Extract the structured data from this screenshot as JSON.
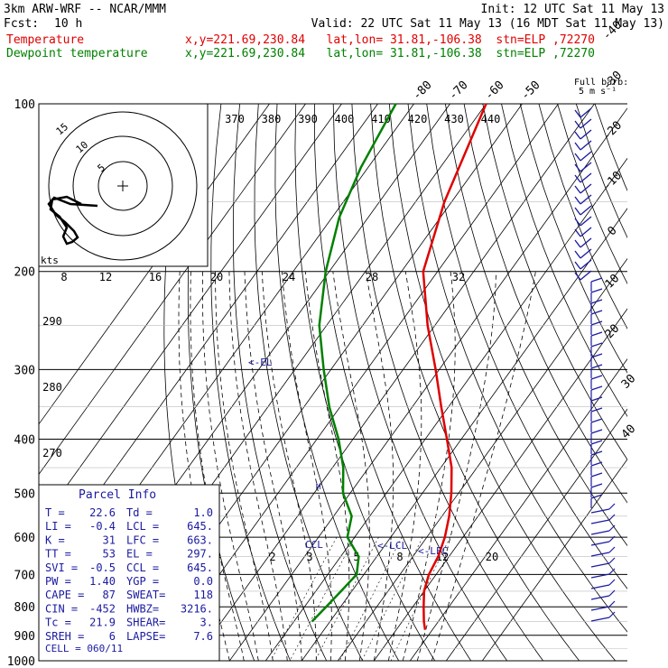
{
  "header": {
    "model": "3km ARW-WRF -- NCAR/MMM",
    "init": "Init: 12 UTC Sat 11 May 13",
    "fcst_label": "Fcst:",
    "fcst_value": "10 h",
    "valid": "Valid: 22 UTC Sat 11 May 13 (16 MDT Sat 11 May 13)",
    "temp_label": "Temperature",
    "dew_label": "Dewpoint temperature",
    "info_temp": "x,y=221.69,230.84   lat,lon= 31.81,-106.38  stn=ELP ,72270",
    "info_dew": "x,y=221.69,230.84   lat,lon= 31.81,-106.38  stn=ELP ,72270"
  },
  "colors": {
    "temperature": "#e00000",
    "dewpoint": "#008000",
    "wind": "#1a1aa0"
  },
  "chart_data": {
    "type": "line",
    "pressure_ticks": [
      "100",
      "200",
      "300",
      "400",
      "500",
      "600",
      "700",
      "800",
      "900",
      "1000"
    ],
    "pressure_values": [
      100,
      200,
      300,
      400,
      500,
      600,
      700,
      800,
      900,
      1000
    ],
    "isotherm_labels": [
      "-80",
      "-70",
      "-60",
      "-50",
      "-40",
      "-30",
      "-20",
      "-10",
      "0",
      "10",
      "20",
      "30",
      "40"
    ],
    "theta_labels": [
      "370",
      "380",
      "390",
      "400",
      "410",
      "420",
      "430",
      "440"
    ],
    "theta_low_labels": [
      "290",
      "280",
      "270"
    ],
    "mixing_ratio_labels": [
      "2",
      "3",
      "5",
      "8",
      "12",
      "20"
    ],
    "hodo_speed_labels": [
      "8",
      "12",
      "16",
      "20",
      "24",
      "28",
      "32"
    ],
    "hodo_ring_labels": [
      "5",
      "10",
      "15"
    ],
    "hodo_units": "kts",
    "wind_scale_label": "Full barb:",
    "wind_scale_value": "5 m s⁻¹",
    "series": [
      {
        "name": "Temperature",
        "points": [
          [
            100,
            -60
          ],
          [
            150,
            -52
          ],
          [
            200,
            -44
          ],
          [
            250,
            -32
          ],
          [
            300,
            -21
          ],
          [
            350,
            -12
          ],
          [
            400,
            -4
          ],
          [
            450,
            3
          ],
          [
            500,
            8
          ],
          [
            550,
            12
          ],
          [
            600,
            15
          ],
          [
            650,
            17
          ],
          [
            700,
            18
          ],
          [
            750,
            20
          ],
          [
            800,
            23
          ],
          [
            850,
            26
          ],
          [
            880,
            28
          ]
        ]
      },
      {
        "name": "Dewpoint temperature",
        "points": [
          [
            100,
            -85
          ],
          [
            130,
            -82
          ],
          [
            160,
            -78
          ],
          [
            200,
            -71
          ],
          [
            250,
            -62
          ],
          [
            300,
            -52
          ],
          [
            350,
            -43
          ],
          [
            400,
            -34
          ],
          [
            450,
            -27
          ],
          [
            500,
            -22
          ],
          [
            550,
            -15
          ],
          [
            600,
            -12
          ],
          [
            650,
            -5
          ],
          [
            700,
            -2
          ],
          [
            750,
            -3
          ],
          [
            800,
            -4
          ],
          [
            850,
            -5
          ]
        ]
      }
    ],
    "annotations": {
      "el": "<-EL",
      "lcl": "<-LCL",
      "lfc": "<-LFC",
      "ccl": "CCL"
    }
  },
  "parcel_info": {
    "title": "Parcel Info",
    "rows": [
      [
        "T  =",
        "22.6",
        "Td =",
        "1.0"
      ],
      [
        "LI =",
        "-0.4",
        "LCL =",
        "645."
      ],
      [
        "K  =",
        "31",
        "LFC =",
        "663."
      ],
      [
        "TT =",
        "53",
        "EL =",
        "297."
      ],
      [
        "SVI =",
        "-0.5",
        "CCL =",
        "645."
      ],
      [
        "PW =",
        "1.40",
        "YGP =",
        "0.0"
      ],
      [
        "CAPE =",
        "87",
        "SWEAT=",
        "118"
      ],
      [
        "CIN =",
        "-452",
        "HWBZ=",
        "3216."
      ],
      [
        "Tc =",
        "21.9",
        "SHEAR=",
        "3."
      ],
      [
        "SREH =",
        "6",
        "LAPSE=",
        "7.6"
      ]
    ],
    "cell": "CELL = 060/11"
  }
}
